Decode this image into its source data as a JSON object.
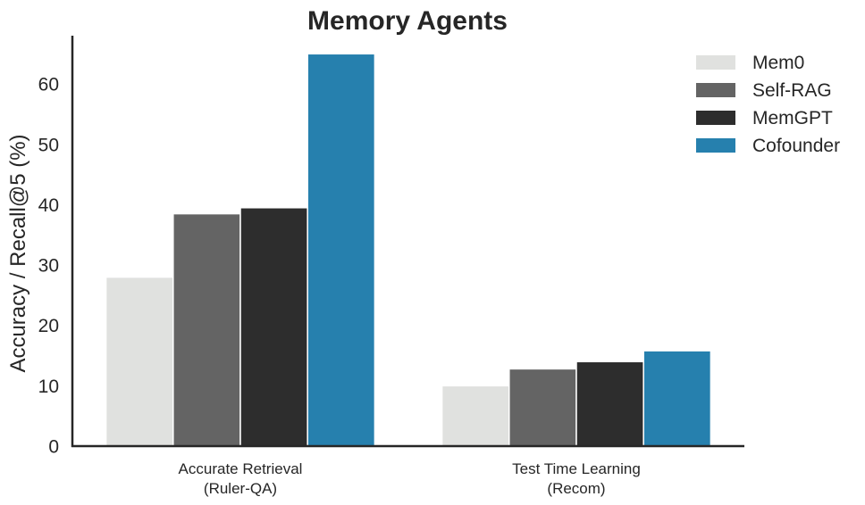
{
  "chart_data": {
    "type": "bar",
    "title": "Memory Agents",
    "ylabel": "Accuracy / Recall@5 (%)",
    "xlabel": "",
    "ylim": [
      0,
      68
    ],
    "yticks": [
      0,
      10,
      20,
      30,
      40,
      50,
      60
    ],
    "grid": false,
    "legend_position": "top-right",
    "categories": [
      [
        "Accurate Retrieval",
        "(Ruler-QA)"
      ],
      [
        "Test Time Learning",
        "(Recom)"
      ]
    ],
    "series": [
      {
        "name": "Mem0",
        "color": "#e0e1df",
        "values": [
          28,
          10
        ]
      },
      {
        "name": "Self-RAG",
        "color": "#646464",
        "values": [
          38.5,
          12.8
        ]
      },
      {
        "name": "MemGPT",
        "color": "#2d2d2d",
        "values": [
          39.5,
          14
        ]
      },
      {
        "name": "Cofounder",
        "color": "#2680ae",
        "values": [
          65,
          15.8
        ]
      }
    ]
  }
}
